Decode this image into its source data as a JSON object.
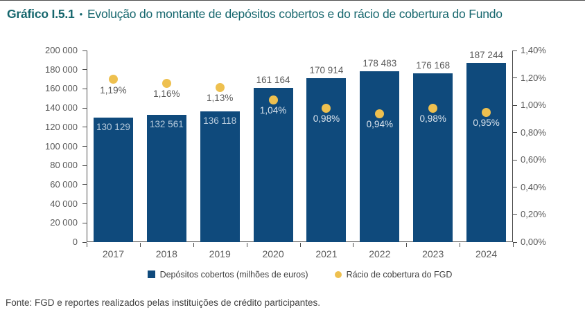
{
  "page": {
    "title_label": "Gráfico I.5.1",
    "title_separator": "•",
    "title_text": "Evolução do montante de depósitos cobertos e do rácio de cobertura do Fundo",
    "source_note": "Fonte: FGD e reportes realizados pelas instituições de crédito participantes."
  },
  "colors": {
    "title_teal": "#15666D",
    "bar_blue": "#0F4A7C",
    "dot_yellow": "#EEC04F",
    "axis_line": "#4a4a4a",
    "outside_label_gray": "#595959",
    "inside_value_label": "#B9CCDD",
    "inside_ratio_label": "#DCE5EE",
    "legend_text": "#404040"
  },
  "chart_data": {
    "type": "bar",
    "title": "Evolução do montante de depósitos cobertos e do rácio de cobertura do Fundo",
    "categories": [
      "2017",
      "2018",
      "2019",
      "2020",
      "2021",
      "2022",
      "2023",
      "2024"
    ],
    "series": [
      {
        "name": "Depósitos cobertos (milhões de euros)",
        "type": "bar",
        "axis": "left",
        "values": [
          130129,
          132561,
          136118,
          161164,
          170914,
          178483,
          176168,
          187244
        ],
        "labels": [
          "130 129",
          "132 561",
          "136 118",
          "161 164",
          "170 914",
          "178 483",
          "176 168",
          "187 244"
        ]
      },
      {
        "name": "Rácio de cobertura do FGD",
        "type": "scatter",
        "axis": "right",
        "values": [
          1.19,
          1.16,
          1.13,
          1.04,
          0.98,
          0.94,
          0.98,
          0.95
        ],
        "labels": [
          "1,19%",
          "1,16%",
          "1,13%",
          "1,04%",
          "0,98%",
          "0,94%",
          "0,98%",
          "0,95%"
        ]
      }
    ],
    "left_axis": {
      "min": 0,
      "max": 200000,
      "step": 20000,
      "tick_labels": [
        "0",
        "20 000",
        "40 000",
        "60 000",
        "80 000",
        "100 000",
        "120 000",
        "140 000",
        "160 000",
        "180 000",
        "200 000"
      ]
    },
    "right_axis": {
      "min": 0,
      "max": 1.4,
      "step": 0.2,
      "tick_labels": [
        "0,00%",
        "0,20%",
        "0,40%",
        "0,60%",
        "0,80%",
        "1,00%",
        "1,20%",
        "1,40%"
      ]
    },
    "grid": false,
    "legend_position": "bottom"
  }
}
